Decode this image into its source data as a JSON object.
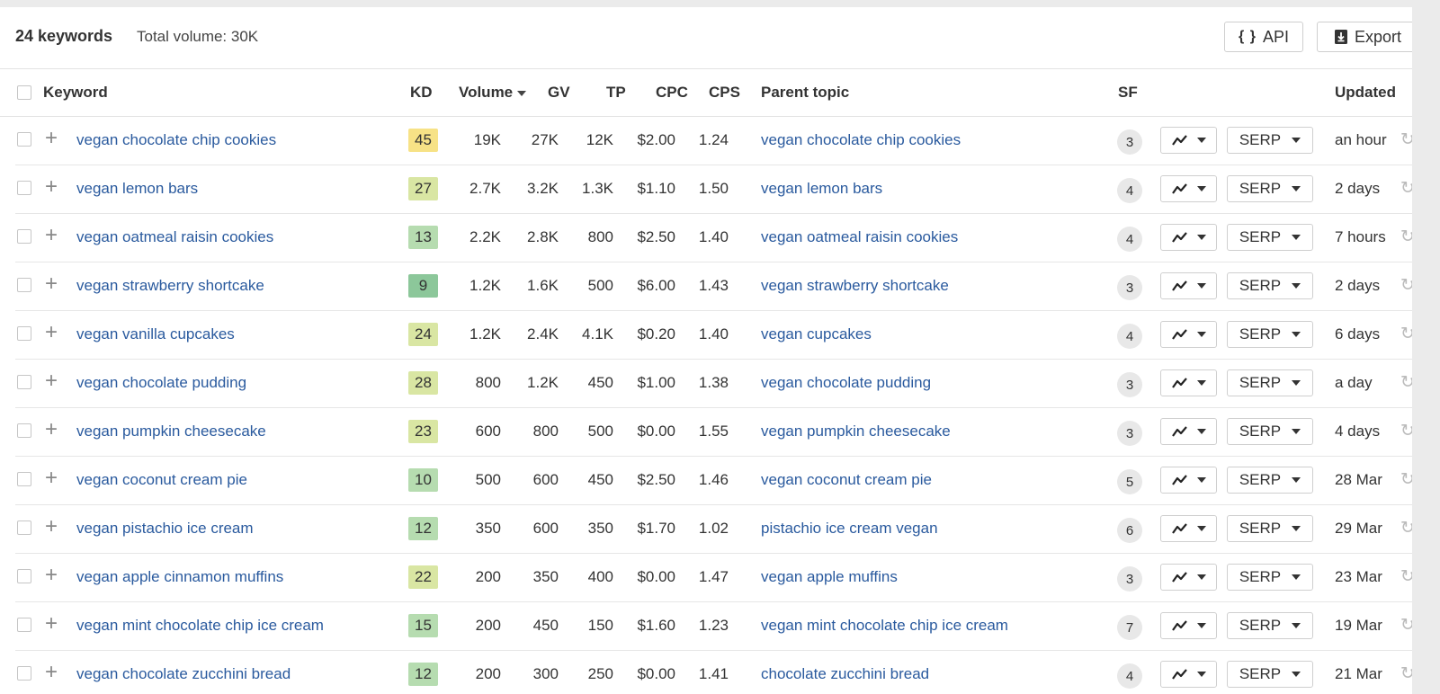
{
  "header": {
    "keyword_count": "24 keywords",
    "total_volume": "Total volume: 30K",
    "api_icon": "{ }",
    "api_label": "API",
    "export_label": "Export"
  },
  "columns": {
    "keyword": "Keyword",
    "kd": "KD",
    "volume": "Volume",
    "gv": "GV",
    "tp": "TP",
    "cpc": "CPC",
    "cps": "CPS",
    "parent_topic": "Parent topic",
    "sf": "SF",
    "updated": "Updated"
  },
  "kd_colors": {
    "yellow": "#f7e286",
    "lime": "#d9e6a3",
    "lightgreen": "#b6dcb0",
    "green": "#8cc79a"
  },
  "serp_label": "SERP",
  "rows": [
    {
      "keyword": "vegan chocolate chip cookies",
      "kd": "45",
      "kd_color": "#f7e286",
      "volume": "19K",
      "gv": "27K",
      "tp": "12K",
      "cpc": "$2.00",
      "cps": "1.24",
      "parent": "vegan chocolate chip cookies",
      "sf": "3",
      "updated": "an hour"
    },
    {
      "keyword": "vegan lemon bars",
      "kd": "27",
      "kd_color": "#d9e6a3",
      "volume": "2.7K",
      "gv": "3.2K",
      "tp": "1.3K",
      "cpc": "$1.10",
      "cps": "1.50",
      "parent": "vegan lemon bars",
      "sf": "4",
      "updated": "2 days"
    },
    {
      "keyword": "vegan oatmeal raisin cookies",
      "kd": "13",
      "kd_color": "#b6dcb0",
      "volume": "2.2K",
      "gv": "2.8K",
      "tp": "800",
      "cpc": "$2.50",
      "cps": "1.40",
      "parent": "vegan oatmeal raisin cookies",
      "sf": "4",
      "updated": "7 hours"
    },
    {
      "keyword": "vegan strawberry shortcake",
      "kd": "9",
      "kd_color": "#8cc79a",
      "volume": "1.2K",
      "gv": "1.6K",
      "tp": "500",
      "cpc": "$6.00",
      "cps": "1.43",
      "parent": "vegan strawberry shortcake",
      "sf": "3",
      "updated": "2 days"
    },
    {
      "keyword": "vegan vanilla cupcakes",
      "kd": "24",
      "kd_color": "#d9e6a3",
      "volume": "1.2K",
      "gv": "2.4K",
      "tp": "4.1K",
      "cpc": "$0.20",
      "cps": "1.40",
      "parent": "vegan cupcakes",
      "sf": "4",
      "updated": "6 days"
    },
    {
      "keyword": "vegan chocolate pudding",
      "kd": "28",
      "kd_color": "#d9e6a3",
      "volume": "800",
      "gv": "1.2K",
      "tp": "450",
      "cpc": "$1.00",
      "cps": "1.38",
      "parent": "vegan chocolate pudding",
      "sf": "3",
      "updated": "a day"
    },
    {
      "keyword": "vegan pumpkin cheesecake",
      "kd": "23",
      "kd_color": "#d9e6a3",
      "volume": "600",
      "gv": "800",
      "tp": "500",
      "cpc": "$0.00",
      "cps": "1.55",
      "parent": "vegan pumpkin cheesecake",
      "sf": "3",
      "updated": "4 days"
    },
    {
      "keyword": "vegan coconut cream pie",
      "kd": "10",
      "kd_color": "#b6dcb0",
      "volume": "500",
      "gv": "600",
      "tp": "450",
      "cpc": "$2.50",
      "cps": "1.46",
      "parent": "vegan coconut cream pie",
      "sf": "5",
      "updated": "28 Mar"
    },
    {
      "keyword": "vegan pistachio ice cream",
      "kd": "12",
      "kd_color": "#b6dcb0",
      "volume": "350",
      "gv": "600",
      "tp": "350",
      "cpc": "$1.70",
      "cps": "1.02",
      "parent": "pistachio ice cream vegan",
      "sf": "6",
      "updated": "29 Mar"
    },
    {
      "keyword": "vegan apple cinnamon muffins",
      "kd": "22",
      "kd_color": "#d9e6a3",
      "volume": "200",
      "gv": "350",
      "tp": "400",
      "cpc": "$0.00",
      "cps": "1.47",
      "parent": "vegan apple muffins",
      "sf": "3",
      "updated": "23 Mar"
    },
    {
      "keyword": "vegan mint chocolate chip ice cream",
      "kd": "15",
      "kd_color": "#b6dcb0",
      "volume": "200",
      "gv": "450",
      "tp": "150",
      "cpc": "$1.60",
      "cps": "1.23",
      "parent": "vegan mint chocolate chip ice cream",
      "sf": "7",
      "updated": "19 Mar"
    },
    {
      "keyword": "vegan chocolate zucchini bread",
      "kd": "12",
      "kd_color": "#b6dcb0",
      "volume": "200",
      "gv": "300",
      "tp": "250",
      "cpc": "$0.00",
      "cps": "1.41",
      "parent": "chocolate zucchini bread",
      "sf": "4",
      "updated": "21 Mar"
    }
  ]
}
